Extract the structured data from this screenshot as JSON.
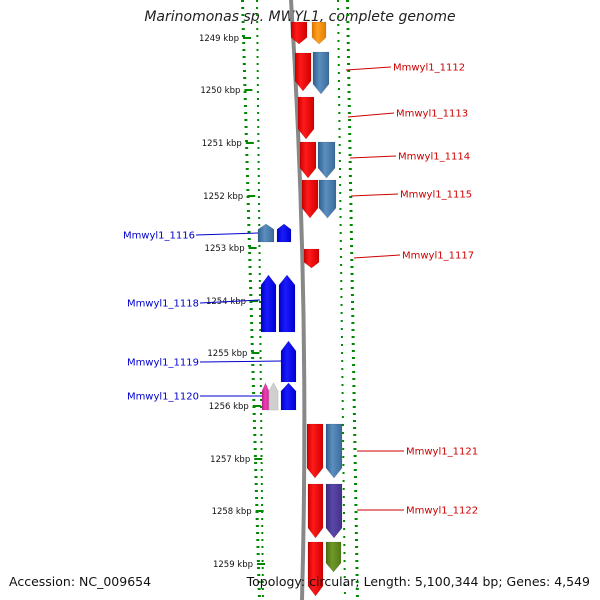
{
  "title": "Marinomonas sp. MWYL1, complete genome",
  "footer": {
    "accession": "Accession: NC_009654",
    "summary": "Topology: circular; Length: 5,100,344 bp; Genes: 4,549"
  },
  "colors": {
    "forward_gene": "#ff0000",
    "reverse_gene": "#0000ff",
    "steelblue_gene": "#4682b4",
    "label_forward": "#cc0000",
    "label_reverse": "#0000cc",
    "tick_green": "#008800",
    "backbone": "#888888"
  },
  "ticks": [
    "1249 kbp",
    "1250 kbp",
    "1251 kbp",
    "1252 kbp",
    "1253 kbp",
    "1254 kbp",
    "1255 kbp",
    "1256 kbp",
    "1257 kbp",
    "1258 kbp",
    "1259 kbp"
  ],
  "gene_labels_right": [
    "Mmwyl1_1112",
    "Mmwyl1_1113",
    "Mmwyl1_1114",
    "Mmwyl1_1115",
    "Mmwyl1_1117",
    "Mmwyl1_1121",
    "Mmwyl1_1122"
  ],
  "gene_labels_left": [
    "Mmwyl1_1116",
    "Mmwyl1_1118",
    "Mmwyl1_1119",
    "Mmwyl1_1120"
  ]
}
